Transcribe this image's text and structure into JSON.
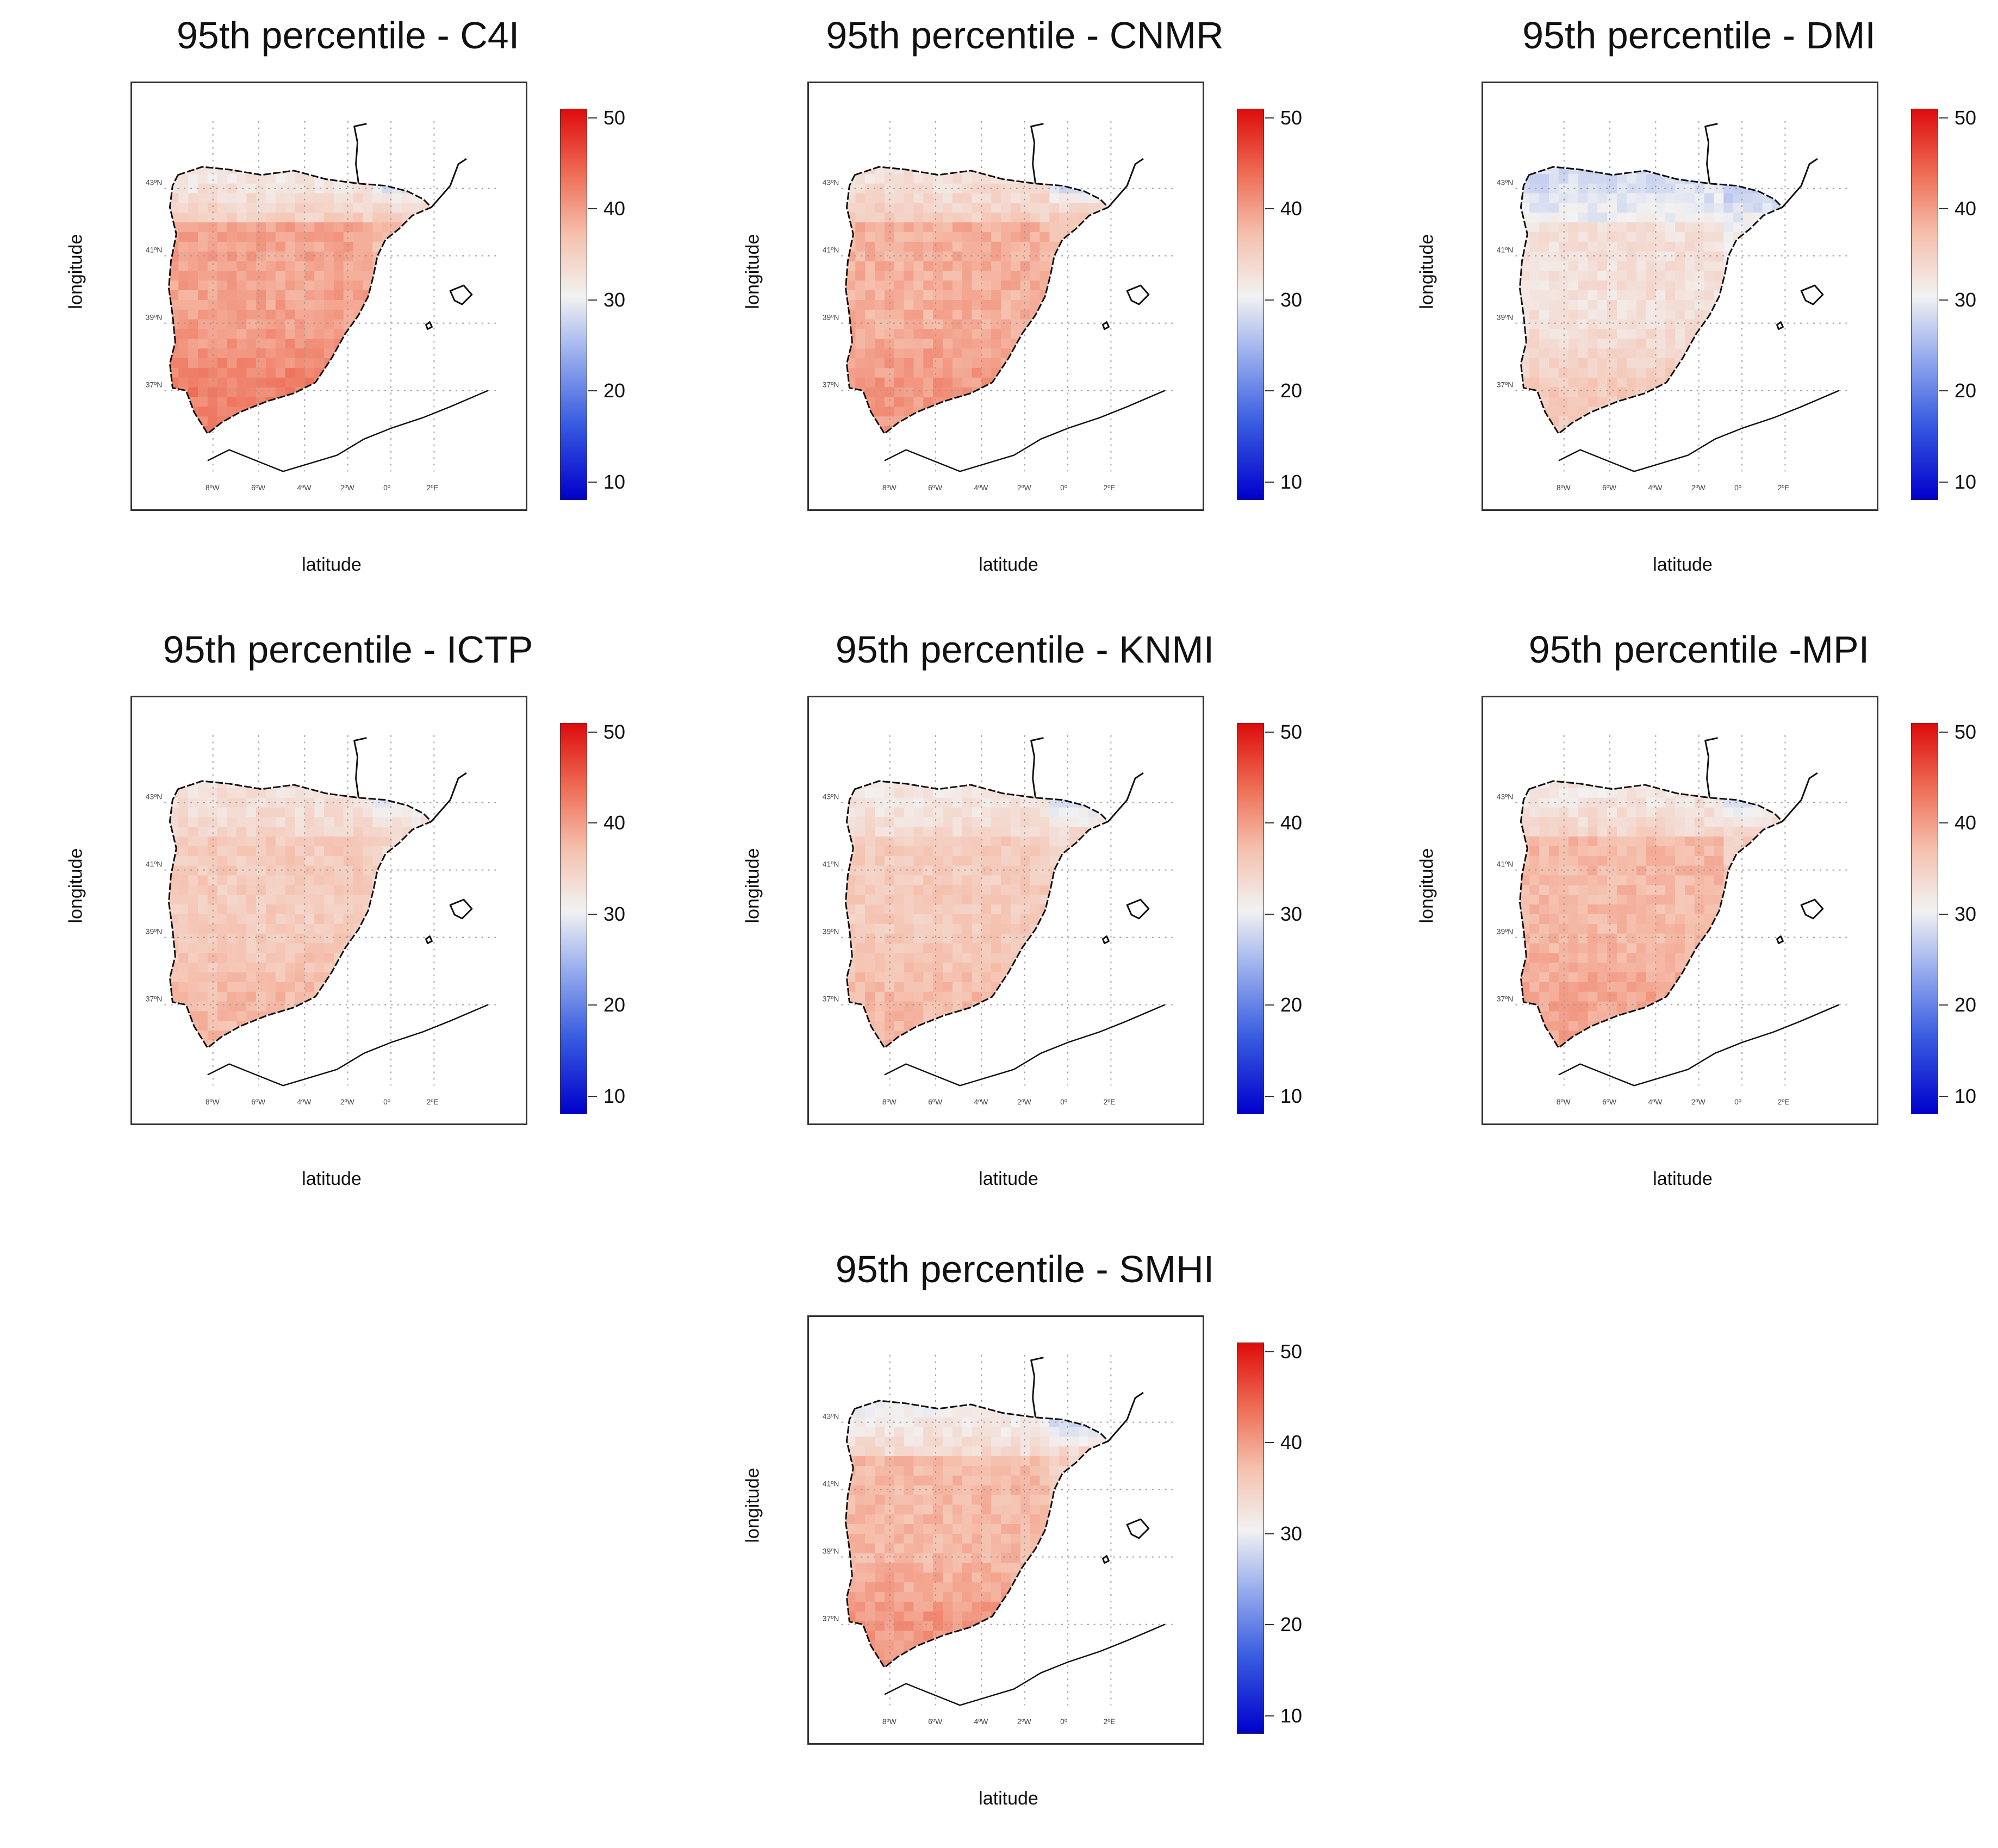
{
  "figure": {
    "colorbar": {
      "min": 8,
      "max": 51,
      "ticks": [
        "10",
        "20",
        "30",
        "40",
        "50"
      ],
      "colors": [
        "#0000cc",
        "#3a5ee0",
        "#9eb2ee",
        "#f2f2f2",
        "#f5c0ad",
        "#ee6a52",
        "#dd0c0c"
      ]
    },
    "lat_ticks": [
      "43ºN",
      "41ºN",
      "39ºN",
      "37ºN"
    ],
    "lon_ticks": [
      "8ºW",
      "6ºW",
      "4ºW",
      "2ºW",
      "0º",
      "2ºE"
    ]
  },
  "chart_data": [
    {
      "type": "heatmap",
      "title": "95th percentile - C4I",
      "xlabel": "latitude",
      "ylabel": "longitude",
      "value_range": [
        8,
        51
      ],
      "region_values": {
        "north": 31,
        "northeast": 36,
        "central": 39,
        "south": 42,
        "pyrenees": 27
      }
    },
    {
      "type": "heatmap",
      "title": "95th percentile - CNMR",
      "xlabel": "latitude",
      "ylabel": "longitude",
      "value_range": [
        8,
        51
      ],
      "region_values": {
        "north": 32,
        "northeast": 35,
        "central": 38,
        "south": 40,
        "pyrenees": 27
      }
    },
    {
      "type": "heatmap",
      "title": "95th percentile - DMI",
      "xlabel": "latitude",
      "ylabel": "longitude",
      "value_range": [
        8,
        51
      ],
      "region_values": {
        "north": 27,
        "northeast": 29,
        "central": 32,
        "south": 35,
        "pyrenees": 24
      }
    },
    {
      "type": "heatmap",
      "title": "95th percentile - ICTP",
      "xlabel": "latitude",
      "ylabel": "longitude",
      "value_range": [
        8,
        51
      ],
      "region_values": {
        "north": 32,
        "northeast": 33,
        "central": 35,
        "south": 37,
        "pyrenees": 28
      }
    },
    {
      "type": "heatmap",
      "title": "95th percentile - KNMI",
      "xlabel": "latitude",
      "ylabel": "longitude",
      "value_range": [
        8,
        51
      ],
      "region_values": {
        "north": 31,
        "northeast": 33,
        "central": 35,
        "south": 37,
        "pyrenees": 26
      }
    },
    {
      "type": "heatmap",
      "title": "95th percentile -MPI",
      "xlabel": "latitude",
      "ylabel": "longitude",
      "value_range": [
        8,
        51
      ],
      "region_values": {
        "north": 31,
        "northeast": 34,
        "central": 37,
        "south": 39,
        "pyrenees": 27
      }
    },
    {
      "type": "heatmap",
      "title": "95th percentile - SMHI",
      "xlabel": "latitude",
      "ylabel": "longitude",
      "value_range": [
        8,
        51
      ],
      "region_values": {
        "north": 30,
        "northeast": 33,
        "central": 37,
        "south": 40,
        "pyrenees": 26
      }
    }
  ]
}
